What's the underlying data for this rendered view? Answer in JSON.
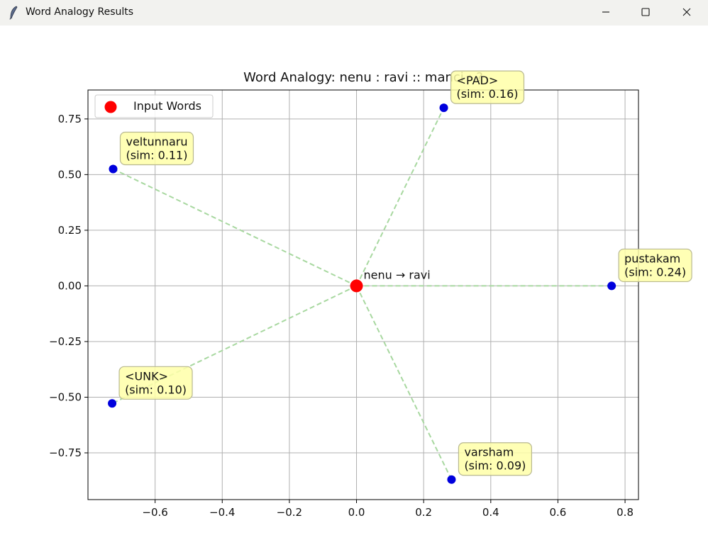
{
  "window": {
    "title": "Word Analogy Results",
    "app_icon": "feather-icon",
    "controls": {
      "minimize": "minimize-icon",
      "maximize": "maximize-icon",
      "close": "close-icon"
    }
  },
  "chart_data": {
    "type": "scatter",
    "title": "Word Analogy: nenu : ravi :: manci : ?",
    "xlabel": "",
    "ylabel": "",
    "xlim": [
      -0.8,
      0.84
    ],
    "ylim": [
      -0.96,
      0.88
    ],
    "xticks": [
      -0.6,
      -0.4,
      -0.2,
      0.0,
      0.2,
      0.4,
      0.6,
      0.8
    ],
    "xtick_labels": [
      "−0.6",
      "−0.4",
      "−0.2",
      "0.0",
      "0.2",
      "0.4",
      "0.6",
      "0.8"
    ],
    "yticks": [
      0.75,
      0.5,
      0.25,
      0.0,
      -0.25,
      -0.5,
      -0.75
    ],
    "ytick_labels": [
      "0.75",
      "0.50",
      "0.25",
      "0.00",
      "−0.25",
      "−0.50",
      "−0.75"
    ],
    "grid": true,
    "legend": {
      "placement": "top-left",
      "entries": [
        {
          "label": "Input Words",
          "color": "#ff0000"
        }
      ]
    },
    "center": {
      "x": 0.0,
      "y": 0.0,
      "label": "nenu → ravi",
      "color": "#ff0000"
    },
    "points": [
      {
        "word": "<PAD>",
        "sim_label": "(sim: 0.16)",
        "x": 0.26,
        "y": 0.8
      },
      {
        "word": "veltunnaru",
        "sim_label": "(sim: 0.11)",
        "x": -0.725,
        "y": 0.525
      },
      {
        "word": "pustakam",
        "sim_label": "(sim: 0.24)",
        "x": 0.76,
        "y": 0.0
      },
      {
        "word": "<UNK>",
        "sim_label": "(sim: 0.10)",
        "x": -0.728,
        "y": -0.528
      },
      {
        "word": "varsham",
        "sim_label": "(sim: 0.09)",
        "x": 0.283,
        "y": -0.87
      }
    ],
    "colors": {
      "point": "#0000dd",
      "connector": "#a8d8a0",
      "annotation_fill": "#ffffa8",
      "annotation_border": "#b8b890",
      "grid": "#b0b0b0"
    }
  }
}
